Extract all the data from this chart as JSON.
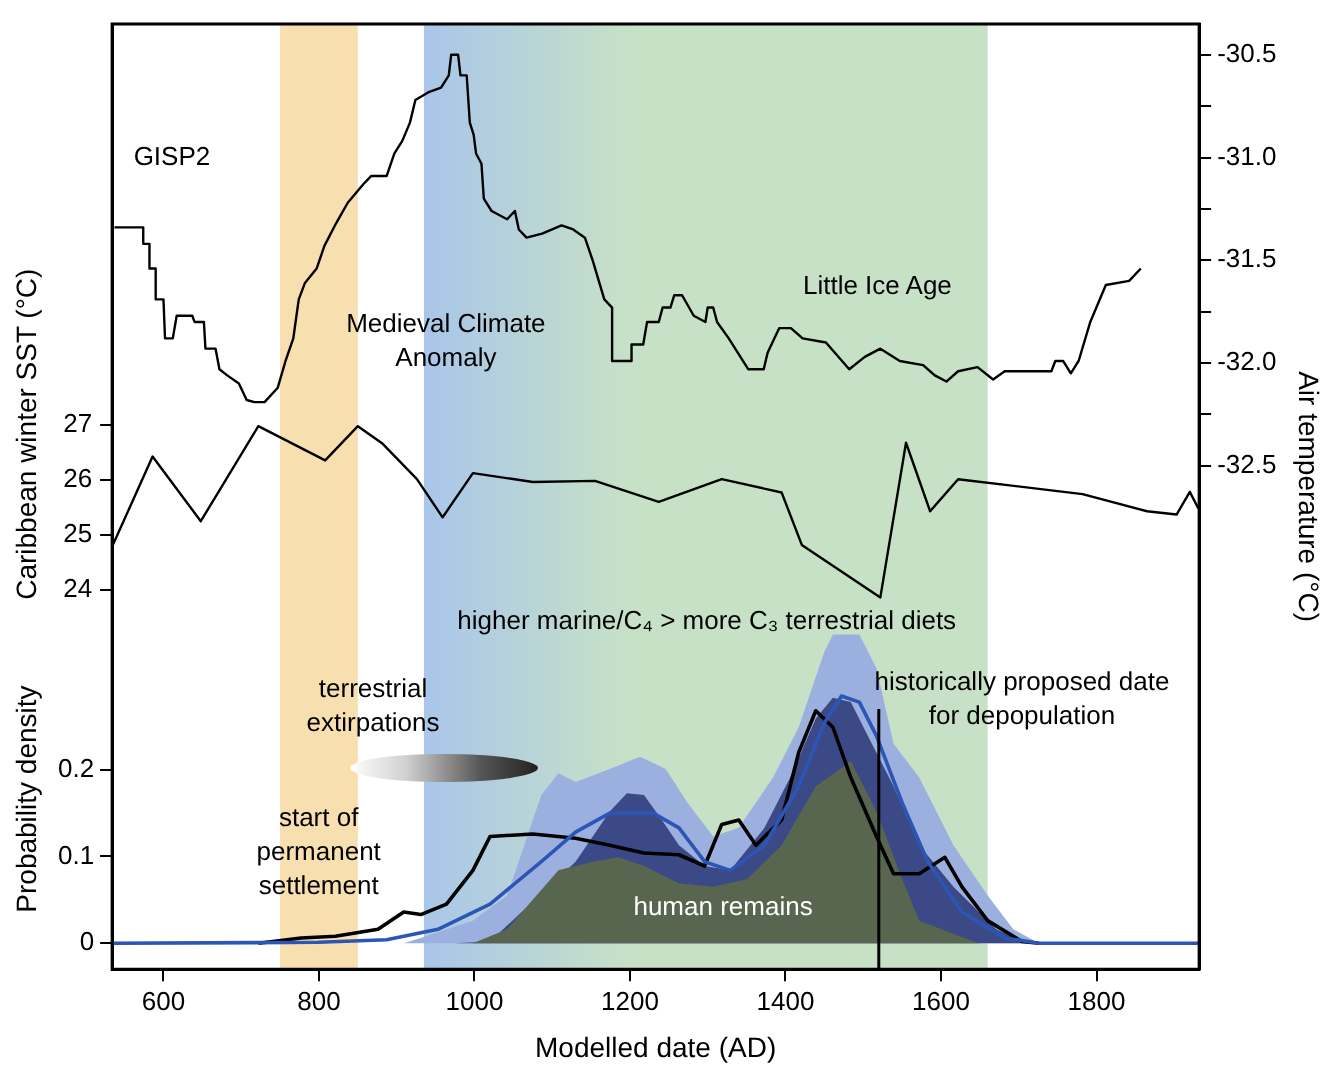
{
  "chart_data": {
    "type": "line",
    "xlabel": "Modelled date (AD)",
    "ylabel": "Probability density",
    "y2label": "Air temperature (°C)",
    "y3label": "Caribbean winter SST (°C)",
    "xlim": [
      534,
      1932
    ],
    "xticks": [
      600,
      800,
      1000,
      1200,
      1400,
      1600,
      1800
    ],
    "ylim": [
      -0.03,
      1.06
    ],
    "yticks": [
      0,
      0.1,
      0.2
    ],
    "y2lim": [
      -34.95,
      -30.35
    ],
    "y2ticks": [
      -30.5,
      {
        "value": -30.75,
        "label": null
      },
      {
        "value": -31,
        "label": "-31.0"
      },
      {
        "value": -31.25,
        "label": null
      },
      -31.5,
      {
        "value": -31.75,
        "label": null
      },
      {
        "value": -32,
        "label": "-32.0"
      },
      {
        "value": -32.25,
        "label": null
      },
      -32.5
    ],
    "y3lim": [
      17.14,
      34.25
    ],
    "y3ticks": [
      24,
      25,
      26,
      27
    ],
    "bands": [
      {
        "axis": "x",
        "from": 750,
        "to": 850,
        "color": "#f8dfb0"
      },
      {
        "axis": "x",
        "from": 935,
        "to": 1200,
        "color": "#a9c6ea"
      },
      {
        "axis": "x",
        "from": 1200,
        "to": 1660,
        "color": "#c7e1c6"
      }
    ],
    "ref_lines": [
      {
        "axis": "x",
        "value": 1520,
        "label": "historically proposed date for depopulation",
        "color": "#000000"
      }
    ],
    "annotations": [
      "Medieval Climate Anomaly",
      "Little Ice Age",
      "higher marine/C₄ > more C₃ terrestrial diets",
      "terrestrial extirpations",
      "start of permanent settlement"
    ],
    "series": [
      {
        "type": "area",
        "color": "#9bb0de",
        "x": [
          909,
          931,
          998,
          1042,
          1086,
          1108,
          1130,
          1174,
          1213,
          1246,
          1274,
          1307,
          1340,
          1384,
          1417,
          1450,
          1461,
          1495,
          1517,
          1539,
          1572,
          1616,
          1660,
          1693,
          1726
        ],
        "values": [
          0,
          0.006,
          0.026,
          0.055,
          0.171,
          0.196,
          0.186,
          0.201,
          0.215,
          0.201,
          0.162,
          0.123,
          0.133,
          0.191,
          0.249,
          0.336,
          0.356,
          0.356,
          0.317,
          0.23,
          0.191,
          0.113,
          0.055,
          0.016,
          0
        ]
      },
      {
        "type": "area",
        "color": "#3b4a86",
        "x": [
          975,
          1020,
          1075,
          1130,
          1174,
          1196,
          1218,
          1241,
          1263,
          1296,
          1329,
          1373,
          1406,
          1439,
          1461,
          1484,
          1506,
          1539,
          1572,
          1616,
          1671,
          1704,
          1726
        ],
        "values": [
          0,
          0.002,
          null,
          0.094,
          0.152,
          0.173,
          0.171,
          0.142,
          0.113,
          0.089,
          0.084,
          0.133,
          0.191,
          0.259,
          0.283,
          0.278,
          0.239,
          0.181,
          0.113,
          0.065,
          0.016,
          0.002,
          0
        ]
      },
      {
        "type": "area",
        "name": "human remains",
        "color": "#58654f",
        "x": [
          998,
          1042,
          1108,
          1152,
          1185,
          1218,
          1263,
          1307,
          1351,
          1395,
          1439,
          1484,
          1517,
          1550,
          1572,
          1616,
          1649
        ],
        "values": [
          0,
          0.016,
          0.084,
          0.094,
          0.099,
          0.089,
          0.069,
          0.065,
          0.074,
          0.113,
          0.181,
          0.21,
          0.152,
          0.074,
          0.026,
          0.011,
          0
        ]
      },
      {
        "type": "line",
        "color": "#000000",
        "x": [
          722,
          777,
          821,
          876,
          909,
          931,
          964,
          998,
          1020,
          1075,
          1130,
          1174,
          1218,
          1263,
          1296,
          1318,
          1340,
          1362,
          1395,
          1417,
          1439,
          1461,
          1484,
          1517,
          1539,
          1572,
          1605,
          1627,
          1660,
          1704,
          1726
        ],
        "values": [
          0,
          0.006,
          0.008,
          0.016,
          0.036,
          0.033,
          0.045,
          0.084,
          0.123,
          0.126,
          0.121,
          0.113,
          0.104,
          0.102,
          0.089,
          0.137,
          0.142,
          0.113,
          0.142,
          0.22,
          0.268,
          0.249,
          0.191,
          0.123,
          0.08,
          0.08,
          0.099,
          0.065,
          0.026,
          0.002,
          0
        ]
      },
      {
        "type": "line",
        "color": "#2b56b5",
        "x": [
          534,
          799,
          887,
          953,
          1020,
          1086,
          1130,
          1174,
          1230,
          1263,
          1296,
          1329,
          1373,
          1417,
          1450,
          1472,
          1495,
          1517,
          1550,
          1583,
          1627,
          1682,
          1726,
          1932
        ],
        "values": [
          0,
          0.001,
          0.004,
          0.016,
          0.045,
          0.094,
          0.128,
          0.15,
          0.15,
          0.133,
          0.094,
          0.084,
          0.113,
          0.181,
          0.254,
          0.285,
          0.278,
          0.239,
          0.162,
          0.094,
          0.036,
          0.006,
          0,
          0
        ]
      },
      {
        "type": "line",
        "axis": "y3",
        "color": "#000000",
        "x": [
          534,
          586,
          648,
          722,
          808,
          850,
          882,
          926,
          959,
          998,
          1075,
          1155,
          1237,
          1318,
          1395,
          1421,
          1522,
          1555,
          1586,
          1622,
          1782,
          1865,
          1903,
          1920,
          1931
        ],
        "values": [
          24.79,
          26.42,
          25.25,
          26.97,
          26.35,
          26.97,
          26.65,
          26.01,
          25.32,
          26.12,
          25.96,
          25.98,
          25.6,
          26.01,
          25.77,
          24.82,
          23.87,
          26.67,
          25.43,
          26.01,
          25.74,
          25.43,
          25.37,
          25.78,
          25.48
        ]
      },
      {
        "type": "line",
        "axis": "y2",
        "name": "GISP2",
        "color": "#000000",
        "x": [
          537,
          574,
          574,
          582,
          582,
          590,
          590,
          600,
          602,
          612,
          617,
          637,
          640,
          652,
          654,
          667,
          672,
          682,
          697,
          707,
          717,
          730,
          747,
          757,
          767,
          774,
          782,
          797,
          807,
          822,
          837,
          857,
          867,
          887,
          897,
          907,
          917,
          924,
          942,
          957,
          967,
          970,
          979,
          982,
          990,
          994,
          999,
          1002,
          1009,
          1012,
          1022,
          1042,
          1052,
          1057,
          1067,
          1087,
          1112,
          1127,
          1142,
          1152,
          1167,
          1177,
          1177,
          1202,
          1202,
          1217,
          1222,
          1237,
          1242,
          1252,
          1257,
          1267,
          1282,
          1297,
          1300,
          1307,
          1312,
          1327,
          1352,
          1372,
          1377,
          1392,
          1407,
          1422,
          1452,
          1482,
          1502,
          1522,
          1547,
          1577,
          1592,
          1607,
          1622,
          1647,
          1667,
          1682,
          1742,
          1747,
          1757,
          1767,
          1777,
          1792,
          1812,
          1842,
          1857
        ],
        "values": [
          -31.34,
          -31.34,
          -31.42,
          -31.42,
          -31.54,
          -31.54,
          -31.69,
          -31.69,
          -31.88,
          -31.88,
          -31.77,
          -31.77,
          -31.8,
          -31.8,
          -31.93,
          -31.93,
          -32.03,
          -32.06,
          -32.1,
          -32.18,
          -32.19,
          -32.19,
          -32.12,
          -31.99,
          -31.88,
          -31.69,
          -31.61,
          -31.54,
          -31.43,
          -31.32,
          -31.22,
          -31.13,
          -31.09,
          -31.09,
          -30.98,
          -30.92,
          -30.83,
          -30.72,
          -30.68,
          -30.66,
          -30.6,
          -30.5,
          -30.5,
          -30.6,
          -30.6,
          -30.83,
          -30.89,
          -30.98,
          -31.03,
          -31.2,
          -31.26,
          -31.3,
          -31.26,
          -31.35,
          -31.39,
          -31.37,
          -31.33,
          -31.35,
          -31.39,
          -31.5,
          -31.69,
          -31.73,
          -31.99,
          -31.99,
          -31.91,
          -31.91,
          -31.8,
          -31.8,
          -31.73,
          -31.73,
          -31.67,
          -31.67,
          -31.77,
          -31.8,
          -31.73,
          -31.73,
          -31.8,
          -31.88,
          -32.03,
          -32.03,
          -31.95,
          -31.83,
          -31.83,
          -31.88,
          -31.9,
          -32.03,
          -31.97,
          -31.93,
          -31.99,
          -32.01,
          -32.06,
          -32.09,
          -32.04,
          -32.02,
          -32.08,
          -32.04,
          -32.04,
          -31.99,
          -31.99,
          -32.05,
          -31.99,
          -31.8,
          -31.62,
          -31.6,
          -31.54
        ]
      }
    ]
  }
}
